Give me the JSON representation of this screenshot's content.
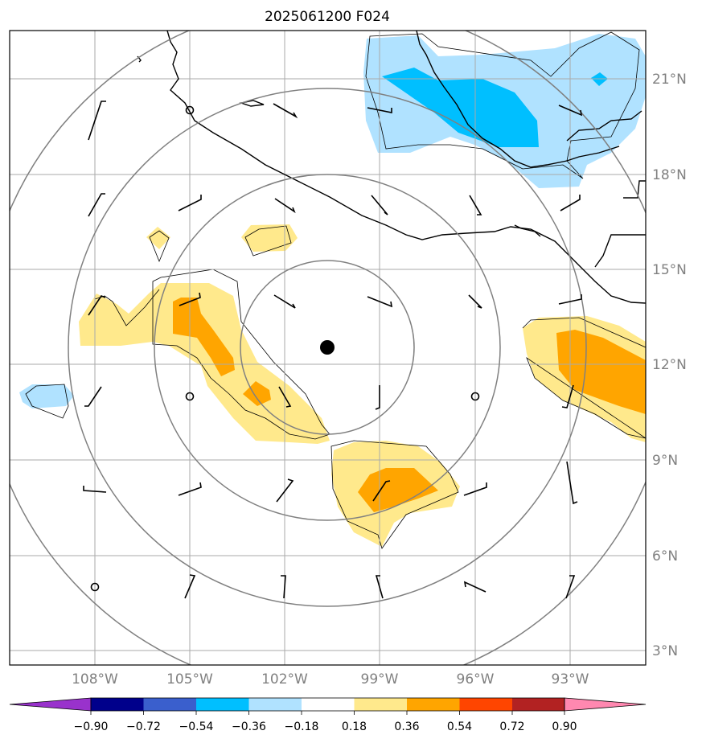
{
  "title": "2025061200 F024",
  "map": {
    "lat_labels": [
      "21°N",
      "18°N",
      "15°N",
      "12°N",
      "9°N",
      "6°N",
      "3°N"
    ],
    "lon_labels": [
      "108°W",
      "105°W",
      "102°W",
      "99°W",
      "96°W",
      "93°W"
    ],
    "storm_center": {
      "lon": -100.7,
      "lat": 12.5
    },
    "range_rings": 4,
    "colors": {
      "coastline": "#000000",
      "gridline": "#aaaaaa",
      "range_ring": "#808080"
    }
  },
  "colorbar": {
    "labels": [
      "−0.90",
      "−0.72",
      "−0.54",
      "−0.36",
      "−0.18",
      "0.18",
      "0.36",
      "0.54",
      "0.72",
      "0.90"
    ],
    "colors": [
      "#9932cc",
      "#00008b",
      "#3a5fcd",
      "#00bfff",
      "#b0e2ff",
      "#ffffff",
      "#ffe98c",
      "#ffa500",
      "#ff4500",
      "#b22222",
      "#ff88b0"
    ]
  }
}
